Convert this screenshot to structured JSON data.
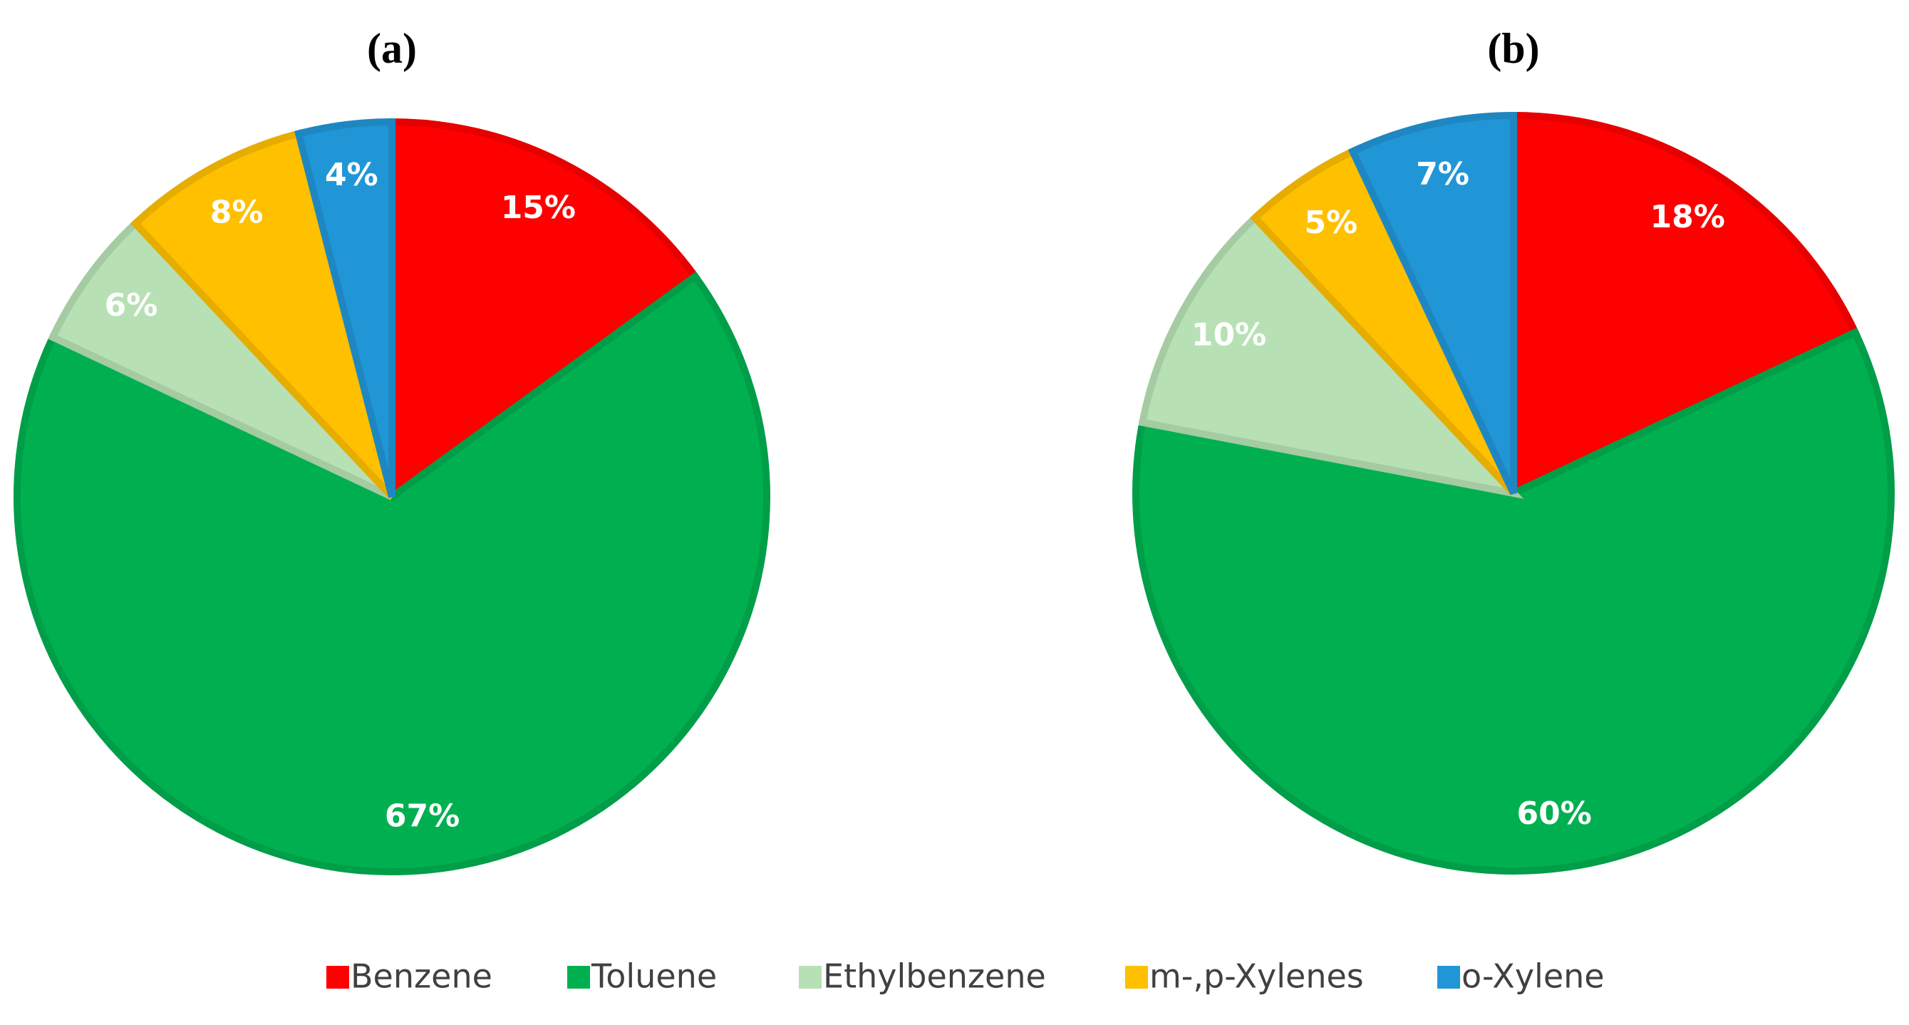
{
  "chart_data": [
    {
      "type": "pie",
      "title": "(a)",
      "categories": [
        "Benzene",
        "Toluene",
        "Ethylbenzene",
        "m-,p-Xylenes",
        "o-Xylene"
      ],
      "values": [
        15,
        67,
        6,
        8,
        4
      ],
      "value_labels": [
        "15%",
        "67%",
        "6%",
        "8%",
        "4%"
      ],
      "colors": [
        "#ff0000",
        "#00b050",
        "#b7e1b4",
        "#ffc000",
        "#2196d6"
      ]
    },
    {
      "type": "pie",
      "title": "(b)",
      "categories": [
        "Benzene",
        "Toluene",
        "Ethylbenzene",
        "m-,p-Xylenes",
        "o-Xylene"
      ],
      "values": [
        18,
        60,
        10,
        5,
        7
      ],
      "value_labels": [
        "18%",
        "60%",
        "10%",
        "5%",
        "7%"
      ],
      "colors": [
        "#ff0000",
        "#00b050",
        "#b7e1b4",
        "#ffc000",
        "#2196d6"
      ]
    }
  ]
}
